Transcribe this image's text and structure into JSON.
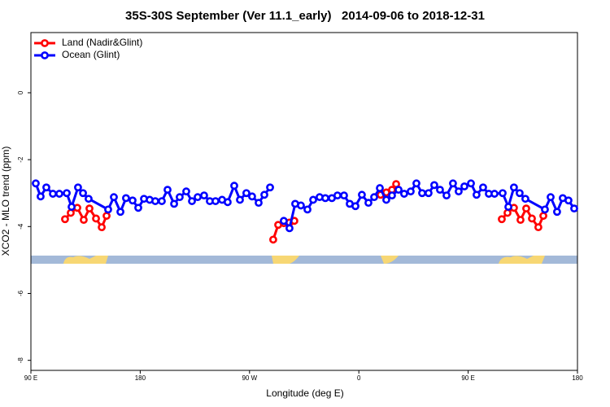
{
  "chart_data": {
    "type": "line",
    "title": "35S-30S September (Ver 11.1_early)   2014-09-06 to 2018-12-31",
    "xlabel": "Longitude (deg E)",
    "ylabel": "XCO2 - MLO trend (ppm)",
    "xlim": [
      90,
      540
    ],
    "ylim": [
      -8.3,
      1.8
    ],
    "xticks": [
      {
        "value": 90,
        "label": "90 E"
      },
      {
        "value": 180,
        "label": "180"
      },
      {
        "value": 270,
        "label": "90 W"
      },
      {
        "value": 360,
        "label": "0"
      },
      {
        "value": 450,
        "label": "90 E"
      },
      {
        "value": 540,
        "label": "180"
      }
    ],
    "yticks": [
      0,
      -2,
      -4,
      -6,
      -8
    ],
    "legend": "upper left",
    "series": [
      {
        "name": "Land (Nadir&Glint)",
        "color": "#ff0000",
        "x": [
          118.1,
          122.8,
          128.2,
          133.5,
          138.2,
          143.6,
          148.3,
          152.3,
          null,
          289.5,
          293.6,
          298.2,
          302.9,
          306.9,
          null,
          377.9,
          382.6,
          387.3,
          390.7,
          null,
          477.7,
          482.4,
          487.7,
          493.1,
          497.8,
          502.5,
          507.8,
          511.9
        ],
        "values": [
          -3.78,
          -3.59,
          -3.44,
          -3.8,
          -3.46,
          -3.76,
          -4.02,
          -3.68,
          null,
          -4.39,
          -3.95,
          -3.9,
          -3.88,
          -3.83,
          null,
          -3.05,
          -2.98,
          -2.9,
          -2.73,
          null,
          -3.78,
          -3.59,
          -3.44,
          -3.8,
          -3.46,
          -3.76,
          -4.02,
          -3.68
        ]
      },
      {
        "name": "Ocean (Glint)",
        "color": "#0000ff",
        "x": [
          94.0,
          98.0,
          102.7,
          108.1,
          113.4,
          119.5,
          123.5,
          128.8,
          132.9,
          137.5,
          153.6,
          158.3,
          163.7,
          168.3,
          173.7,
          178.4,
          183.1,
          187.8,
          192.4,
          197.8,
          202.5,
          207.9,
          212.5,
          217.9,
          222.6,
          227.3,
          232.6,
          237.3,
          242.0,
          247.4,
          252.0,
          257.4,
          262.1,
          267.4,
          272.1,
          277.5,
          282.2,
          286.9,
          null,
          298.2,
          302.9,
          307.6,
          312.3,
          317.7,
          322.4,
          327.7,
          332.4,
          337.8,
          342.4,
          347.8,
          352.5,
          357.2,
          362.5,
          367.9,
          372.6,
          377.3,
          382.6,
          387.3,
          392.7,
          397.3,
          402.7,
          407.4,
          412.1,
          417.4,
          422.1,
          426.8,
          432.2,
          437.5,
          442.2,
          446.9,
          452.3,
          456.9,
          462.3,
          467.0,
          471.7,
          478.4,
          483.1,
          487.7,
          492.4,
          497.1,
          513.2,
          517.9,
          523.2,
          527.9,
          532.6,
          537.3
        ],
        "values": [
          -2.71,
          -3.1,
          -2.83,
          -3.02,
          -3.02,
          -3.0,
          -3.41,
          -2.83,
          -3.0,
          -3.17,
          -3.49,
          -3.12,
          -3.56,
          -3.15,
          -3.22,
          -3.44,
          -3.17,
          -3.2,
          -3.24,
          -3.24,
          -2.9,
          -3.32,
          -3.12,
          -2.95,
          -3.24,
          -3.12,
          -3.07,
          -3.24,
          -3.24,
          -3.2,
          -3.27,
          -2.78,
          -3.2,
          -3.0,
          -3.1,
          -3.29,
          -3.05,
          -2.83,
          null,
          -3.83,
          -4.05,
          -3.32,
          -3.37,
          -3.49,
          -3.2,
          -3.12,
          -3.15,
          -3.15,
          -3.07,
          -3.07,
          -3.32,
          -3.39,
          -3.05,
          -3.29,
          -3.12,
          -2.85,
          -3.2,
          -3.07,
          -2.9,
          -3.02,
          -2.95,
          -2.71,
          -3.0,
          -3.0,
          -2.76,
          -2.9,
          -3.07,
          -2.71,
          -2.95,
          -2.8,
          -2.71,
          -3.05,
          -2.83,
          -3.02,
          -3.02,
          -3.0,
          -3.41,
          -2.83,
          -3.0,
          -3.17,
          -3.49,
          -3.12,
          -3.56,
          -3.15,
          -3.22,
          -3.46
        ]
      }
    ]
  }
}
